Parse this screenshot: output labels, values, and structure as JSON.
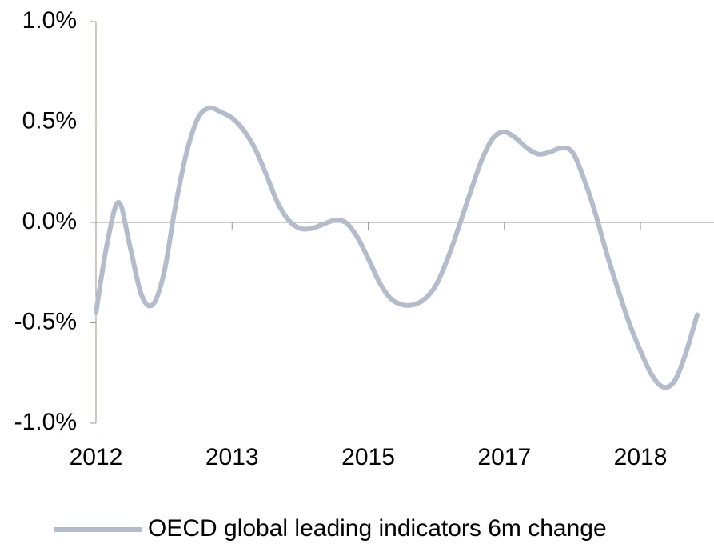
{
  "chart_data": {
    "type": "line",
    "categories": [
      "2012",
      null,
      null,
      null,
      null,
      null,
      null,
      null,
      null,
      null,
      null,
      null,
      "2013",
      null,
      null,
      null,
      null,
      null,
      null,
      null,
      null,
      null,
      null,
      null,
      "2015",
      null,
      null,
      null,
      null,
      null,
      null,
      null,
      null,
      null,
      null,
      null,
      "2017",
      null,
      null,
      null,
      null,
      null,
      null,
      null,
      null,
      null,
      null,
      null,
      "2018",
      null,
      null,
      null,
      null,
      null
    ],
    "series": [
      {
        "name": "OECD global leading indicators 6m change",
        "color": "#b4bccc",
        "values": [
          -0.45,
          -0.1,
          0.1,
          -0.12,
          -0.36,
          -0.41,
          -0.25,
          0.08,
          0.35,
          0.52,
          0.57,
          0.55,
          0.52,
          0.46,
          0.37,
          0.24,
          0.1,
          0.01,
          -0.03,
          -0.03,
          -0.01,
          0.01,
          0.0,
          -0.07,
          -0.18,
          -0.3,
          -0.38,
          -0.41,
          -0.41,
          -0.38,
          -0.31,
          -0.18,
          -0.02,
          0.15,
          0.31,
          0.42,
          0.45,
          0.42,
          0.37,
          0.34,
          0.35,
          0.37,
          0.35,
          0.22,
          0.05,
          -0.15,
          -0.33,
          -0.5,
          -0.64,
          -0.76,
          -0.82,
          -0.79,
          -0.65,
          -0.46
        ]
      }
    ],
    "ylim": [
      -1.0,
      1.0
    ],
    "yticks": [
      {
        "value": -1.0,
        "label": "-1.0%"
      },
      {
        "value": -0.5,
        "label": "-0.5%"
      },
      {
        "value": 0.0,
        "label": "0.0%"
      },
      {
        "value": 0.5,
        "label": "0.5%"
      },
      {
        "value": 1.0,
        "label": "1.0%"
      }
    ],
    "grid": false,
    "legend": "bottom"
  }
}
